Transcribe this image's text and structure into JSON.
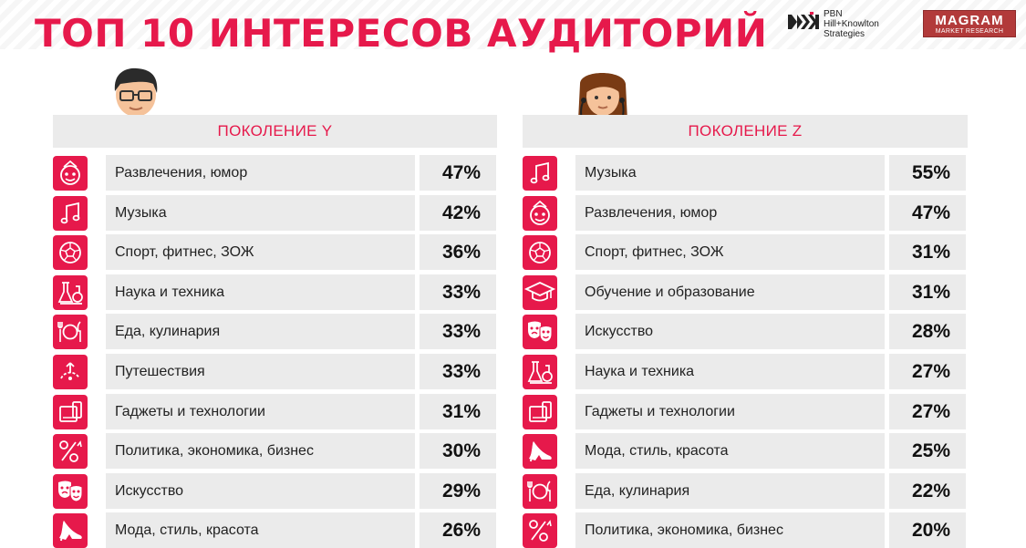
{
  "header": {
    "title": "ТОП 10 ИНТЕРЕСОВ АУДИТОРИЙ",
    "logo_pbn_lines": [
      "PBN",
      "Hill+Knowlton",
      "Strategies"
    ],
    "logo_magram": "MAGRAM",
    "logo_magram_sub": "MARKET RESEARCH"
  },
  "colors": {
    "accent": "#e6194b",
    "row_bg": "#ebebeb"
  },
  "chart_data": [
    {
      "type": "table",
      "title": "ПОКОЛЕНИЕ Y",
      "unit": "%",
      "rows": [
        {
          "label": "Развлечения, юмор",
          "value": 47,
          "display": "47%",
          "icon": "entertainment-icon"
        },
        {
          "label": "Музыка",
          "value": 42,
          "display": "42%",
          "icon": "music-icon"
        },
        {
          "label": "Спорт, фитнес, ЗОЖ",
          "value": 36,
          "display": "36%",
          "icon": "sport-ball-icon"
        },
        {
          "label": "Наука и техника",
          "value": 33,
          "display": "33%",
          "icon": "science-flask-icon"
        },
        {
          "label": "Еда, кулинария",
          "value": 33,
          "display": "33%",
          "icon": "food-plate-icon"
        },
        {
          "label": "Путешествия",
          "value": 33,
          "display": "33%",
          "icon": "travel-icon"
        },
        {
          "label": "Гаджеты и технологии",
          "value": 31,
          "display": "31%",
          "icon": "gadgets-icon"
        },
        {
          "label": "Политика, экономика, бизнес",
          "value": 30,
          "display": "30%",
          "icon": "percent-icon"
        },
        {
          "label": "Искусство",
          "value": 29,
          "display": "29%",
          "icon": "theater-masks-icon"
        },
        {
          "label": "Мода, стиль, красота",
          "value": 26,
          "display": "26%",
          "icon": "high-heel-icon"
        }
      ]
    },
    {
      "type": "table",
      "title": "ПОКОЛЕНИЕ Z",
      "unit": "%",
      "rows": [
        {
          "label": "Музыка",
          "value": 55,
          "display": "55%",
          "icon": "music-icon"
        },
        {
          "label": "Развлечения, юмор",
          "value": 47,
          "display": "47%",
          "icon": "entertainment-icon"
        },
        {
          "label": "Спорт, фитнес, ЗОЖ",
          "value": 31,
          "display": "31%",
          "icon": "sport-ball-icon"
        },
        {
          "label": "Обучение и образование",
          "value": 31,
          "display": "31%",
          "icon": "graduation-cap-icon"
        },
        {
          "label": "Искусство",
          "value": 28,
          "display": "28%",
          "icon": "theater-masks-icon"
        },
        {
          "label": "Наука и техника",
          "value": 27,
          "display": "27%",
          "icon": "science-flask-icon"
        },
        {
          "label": "Гаджеты и технологии",
          "value": 27,
          "display": "27%",
          "icon": "gadgets-icon"
        },
        {
          "label": "Мода, стиль, красота",
          "value": 25,
          "display": "25%",
          "icon": "high-heel-icon"
        },
        {
          "label": "Еда, кулинария",
          "value": 22,
          "display": "22%",
          "icon": "food-plate-icon"
        },
        {
          "label": "Политика, экономика, бизнес",
          "value": 20,
          "display": "20%",
          "icon": "percent-icon"
        }
      ]
    }
  ]
}
